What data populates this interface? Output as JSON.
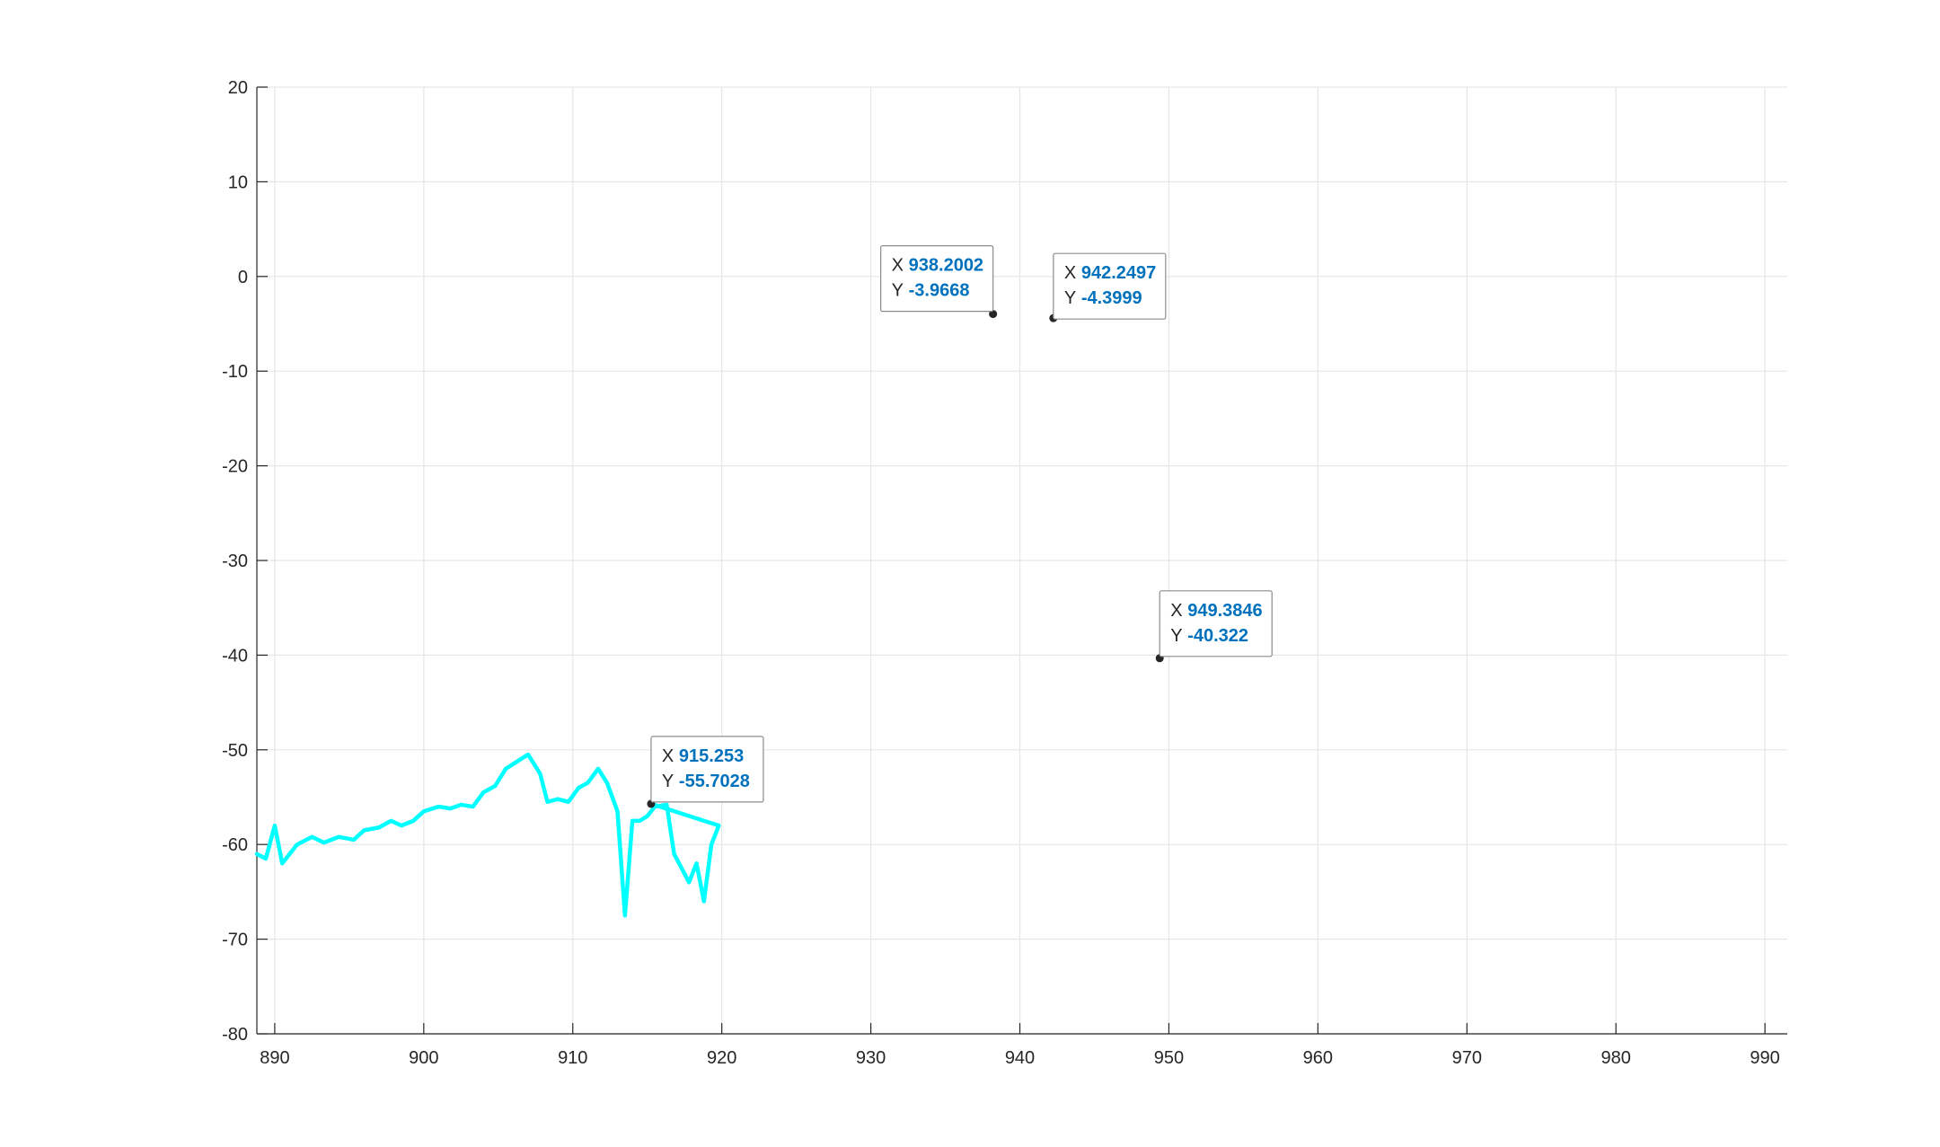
{
  "chart_data": {
    "type": "line",
    "title": "",
    "xlabel": "",
    "ylabel": "",
    "xlim": [
      888.8,
      991.5
    ],
    "ylim": [
      -80,
      20
    ],
    "x_ticks": [
      890,
      900,
      910,
      920,
      930,
      940,
      950,
      960,
      970,
      980,
      990
    ],
    "y_ticks": [
      -80,
      -70,
      -60,
      -50,
      -40,
      -30,
      -20,
      -10,
      0,
      10,
      20
    ],
    "grid": true,
    "series": [
      {
        "color": "#00ffff",
        "points": [
          [
            888.8,
            -61.0
          ],
          [
            889.4,
            -61.5
          ],
          [
            890.0,
            -58.0
          ],
          [
            890.5,
            -62.0
          ],
          [
            891.5,
            -60.0
          ],
          [
            892.5,
            -59.2
          ],
          [
            893.3,
            -59.8
          ],
          [
            894.3,
            -59.2
          ],
          [
            895.3,
            -59.5
          ],
          [
            896.0,
            -58.5
          ],
          [
            897.0,
            -58.2
          ],
          [
            897.8,
            -57.5
          ],
          [
            898.5,
            -58.0
          ],
          [
            899.3,
            -57.5
          ],
          [
            900.0,
            -56.5
          ],
          [
            901.0,
            -56.0
          ],
          [
            901.8,
            -56.2
          ],
          [
            902.5,
            -55.8
          ],
          [
            903.3,
            -56.0
          ],
          [
            904.0,
            -54.5
          ],
          [
            904.8,
            -53.8
          ],
          [
            905.5,
            -52.0
          ],
          [
            906.3,
            -51.2
          ],
          [
            907.0,
            -50.5
          ],
          [
            907.8,
            -52.5
          ],
          [
            908.3,
            -55.5
          ],
          [
            909.0,
            -55.2
          ],
          [
            909.7,
            -55.5
          ],
          [
            910.4,
            -54.0
          ],
          [
            911.0,
            -53.5
          ],
          [
            911.7,
            -52.0
          ],
          [
            912.3,
            -53.5
          ],
          [
            913.0,
            -56.5
          ],
          [
            913.5,
            -67.5
          ],
          [
            914.0,
            -57.5
          ],
          [
            914.5,
            -57.5
          ],
          [
            915.0,
            -57.0
          ],
          [
            915.5,
            -56.0
          ],
          [
            916.3,
            -55.8
          ],
          [
            916.8,
            -61.0
          ],
          [
            917.3,
            -62.5
          ],
          [
            917.8,
            -64.0
          ],
          [
            918.3,
            -62.0
          ],
          [
            918.8,
            -66.0
          ],
          [
            919.3,
            -60.0
          ],
          [
            919.8,
            -58.0
          ],
          [
            915.253,
            -55.7028
          ]
        ]
      }
    ],
    "datatips": [
      {
        "x_key": "X",
        "x_value": "938.2002",
        "y_key": "Y",
        "y_value": "-3.9668",
        "x": 938.2002,
        "y": -3.9668
      },
      {
        "x_key": "X",
        "x_value": "942.2497",
        "y_key": "Y",
        "y_value": "-4.3999",
        "x": 942.2497,
        "y": -4.3999
      },
      {
        "x_key": "X",
        "x_value": "949.3846",
        "y_key": "Y",
        "y_value": "-40.322",
        "x": 949.3846,
        "y": -40.322
      },
      {
        "x_key": "X",
        "x_value": "915.253",
        "y_key": "Y",
        "y_value": "-55.7028",
        "x": 915.253,
        "y": -55.7028
      }
    ]
  }
}
